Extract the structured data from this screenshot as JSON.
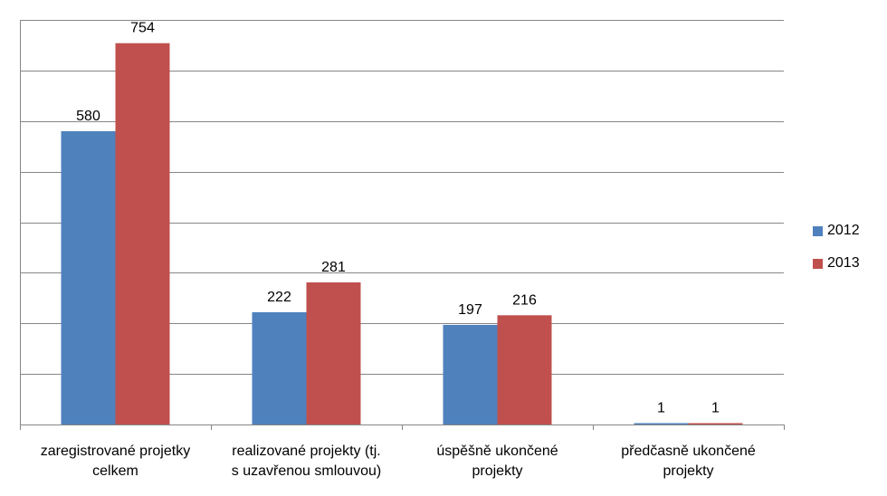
{
  "chart_data": {
    "type": "bar",
    "title": "",
    "xlabel": "",
    "ylabel": "",
    "ylim": [
      0,
      800
    ],
    "grid": true,
    "legend_position": "right",
    "categories": [
      [
        "zaregistrované projetky",
        "celkem"
      ],
      [
        "realizované projekty (tj.",
        "s uzavřenou smlouvou)"
      ],
      [
        "úspěšně ukončené",
        "projekty"
      ],
      [
        "předčasně ukončené",
        "projekty"
      ]
    ],
    "series": [
      {
        "name": "2012",
        "color": "#4F81BD",
        "values": [
          580,
          222,
          197,
          1
        ]
      },
      {
        "name": "2013",
        "color": "#C0504D",
        "values": [
          754,
          281,
          216,
          1
        ]
      }
    ]
  }
}
